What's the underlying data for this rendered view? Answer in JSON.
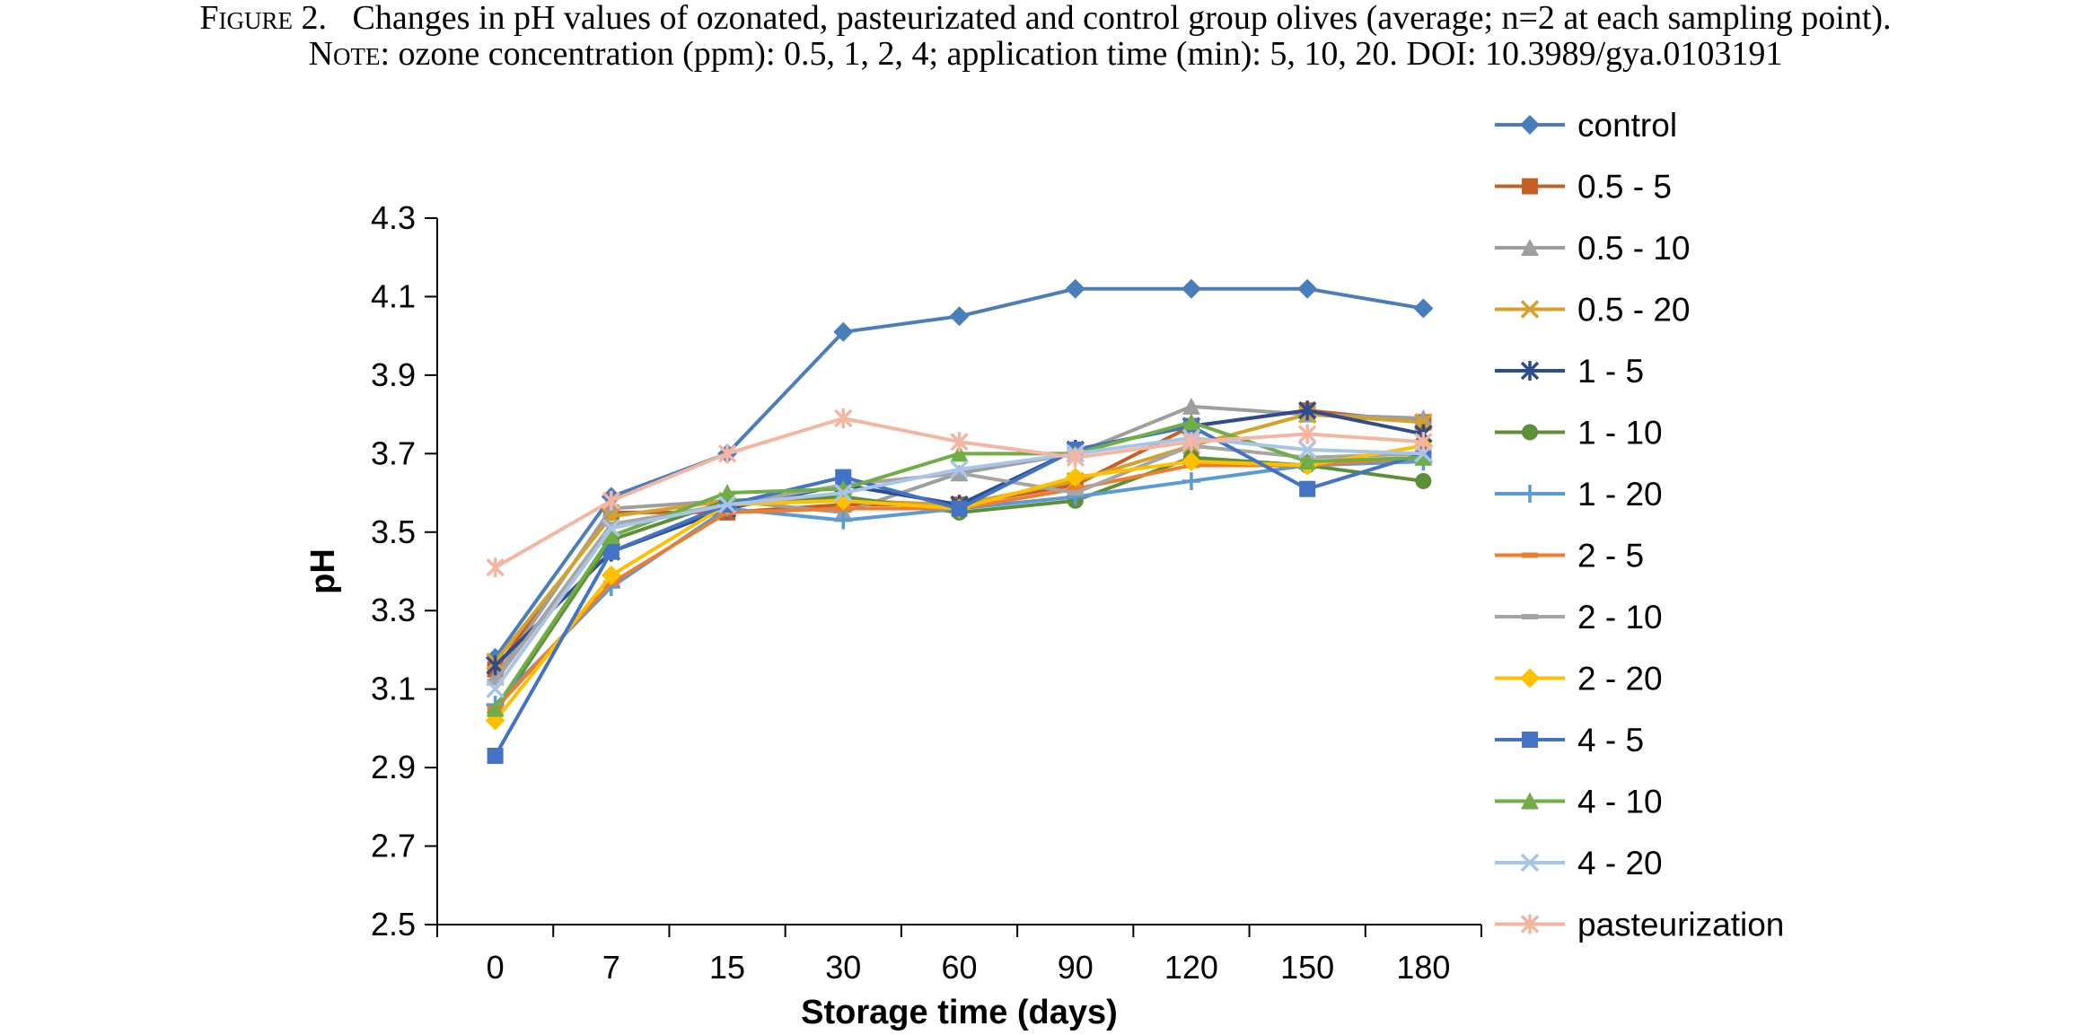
{
  "caption": {
    "line1_prefix": "Figure 2.",
    "line1_text": "Changes in pH values of ozonated, pasteurizated and control group olives (average; n=2 at each sampling point).",
    "line2_prefix": "Note:",
    "line2_text": "ozone concentration (ppm): 0.5, 1, 2, 4; application time (min): 5, 10, 20. DOI: 10.3989/gya.0103191"
  },
  "chart_data": {
    "type": "line",
    "xlabel": "Storage time (days)",
    "ylabel": "pH",
    "categories": [
      "0",
      "7",
      "15",
      "30",
      "60",
      "90",
      "120",
      "150",
      "180"
    ],
    "ylim": [
      2.5,
      4.3
    ],
    "yticks": [
      "2.5",
      "2.7",
      "2.9",
      "3.1",
      "3.3",
      "3.5",
      "3.7",
      "3.9",
      "4.1",
      "4.3"
    ],
    "grid": false,
    "legend_position": "right",
    "series": [
      {
        "name": "control",
        "color": "#4A7EBB",
        "marker": "diamond",
        "values": [
          3.18,
          3.59,
          3.7,
          4.01,
          4.05,
          4.12,
          4.12,
          4.12,
          4.07
        ]
      },
      {
        "name": "0.5 - 5",
        "color": "#C65F26",
        "marker": "square",
        "values": [
          3.15,
          3.55,
          3.55,
          3.57,
          3.57,
          3.62,
          3.77,
          3.81,
          3.78
        ]
      },
      {
        "name": "0.5 - 10",
        "color": "#9E9E9E",
        "marker": "triangle",
        "values": [
          3.13,
          3.56,
          3.58,
          3.55,
          3.65,
          3.7,
          3.82,
          3.8,
          3.79
        ]
      },
      {
        "name": "0.5 - 20",
        "color": "#D4A12A",
        "marker": "x",
        "values": [
          3.17,
          3.54,
          3.58,
          3.58,
          3.57,
          3.63,
          3.72,
          3.8,
          3.78
        ]
      },
      {
        "name": "1 - 5",
        "color": "#2F4D8E",
        "marker": "asterisk",
        "values": [
          3.16,
          3.45,
          3.56,
          3.62,
          3.57,
          3.71,
          3.77,
          3.81,
          3.75
        ]
      },
      {
        "name": "1 - 10",
        "color": "#5C8F38",
        "marker": "circle",
        "values": [
          3.04,
          3.48,
          3.58,
          3.59,
          3.55,
          3.58,
          3.69,
          3.67,
          3.63
        ]
      },
      {
        "name": "1 - 20",
        "color": "#5B9BD5",
        "marker": "plus",
        "values": [
          3.06,
          3.36,
          3.56,
          3.53,
          3.56,
          3.59,
          3.63,
          3.67,
          3.68
        ]
      },
      {
        "name": "2 - 5",
        "color": "#ED7D31",
        "marker": "dash",
        "values": [
          3.05,
          3.37,
          3.55,
          3.56,
          3.56,
          3.61,
          3.67,
          3.67,
          3.69
        ]
      },
      {
        "name": "2 - 10",
        "color": "#A5A5A5",
        "marker": "dash",
        "values": [
          3.12,
          3.52,
          3.57,
          3.62,
          3.65,
          3.6,
          3.72,
          3.69,
          3.7
        ]
      },
      {
        "name": "2 - 20",
        "color": "#FFC000",
        "marker": "diamond",
        "values": [
          3.02,
          3.39,
          3.57,
          3.58,
          3.56,
          3.64,
          3.68,
          3.67,
          3.72
        ]
      },
      {
        "name": "4 - 5",
        "color": "#4472C4",
        "marker": "square",
        "values": [
          2.93,
          3.45,
          3.57,
          3.64,
          3.56,
          3.71,
          3.77,
          3.61,
          3.7
        ]
      },
      {
        "name": "4 - 10",
        "color": "#70AD47",
        "marker": "triangle",
        "values": [
          3.05,
          3.49,
          3.6,
          3.61,
          3.7,
          3.7,
          3.78,
          3.68,
          3.69
        ]
      },
      {
        "name": "4 - 20",
        "color": "#A9C4E6",
        "marker": "x",
        "values": [
          3.1,
          3.51,
          3.57,
          3.6,
          3.66,
          3.7,
          3.74,
          3.71,
          3.7
        ]
      },
      {
        "name": "pasteurization",
        "color": "#F4B6A3",
        "marker": "asterisk",
        "values": [
          3.41,
          3.58,
          3.7,
          3.79,
          3.73,
          3.69,
          3.73,
          3.75,
          3.73
        ]
      }
    ]
  }
}
